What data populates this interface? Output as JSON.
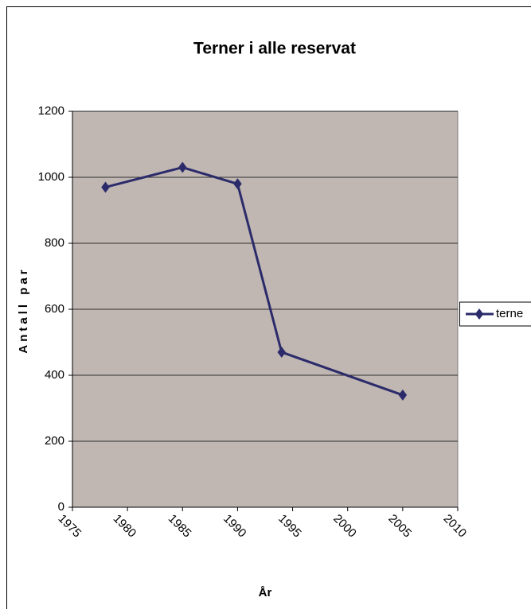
{
  "chart_data": {
    "type": "line",
    "title": "Terner i alle reservat",
    "x_label": "År",
    "y_label": "Antall par",
    "x": [
      1978,
      1985,
      1990,
      1994,
      2005
    ],
    "series": [
      {
        "name": "terne",
        "color": "#2b2b6b",
        "values": [
          970,
          1030,
          980,
          470,
          340
        ]
      }
    ],
    "xlim": [
      1975,
      2010
    ],
    "xticks": [
      1975,
      1980,
      1985,
      1990,
      1995,
      2000,
      2005,
      2010
    ],
    "ylim": [
      0,
      1200
    ],
    "yticks": [
      0,
      200,
      400,
      600,
      800,
      1000,
      1200
    ],
    "grid": true,
    "legend": "right",
    "plot_background": "#c0b6b2"
  }
}
